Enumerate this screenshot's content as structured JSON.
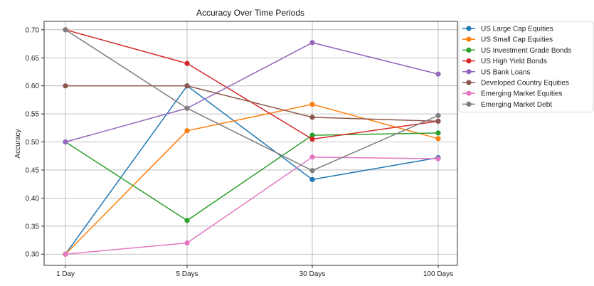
{
  "chart_data": {
    "type": "line",
    "title": "Accuracy Over Time Periods",
    "xlabel": "",
    "ylabel": "Accuracy",
    "categories": [
      "1 Day",
      "5 Days",
      "30 Days",
      "100 Days"
    ],
    "ylim": [
      0.28,
      0.715
    ],
    "yticks": [
      "0.30",
      "0.35",
      "0.40",
      "0.45",
      "0.50",
      "0.55",
      "0.60",
      "0.65",
      "0.70"
    ],
    "grid": true,
    "legend_position": "right-top",
    "series": [
      {
        "name": "US Large Cap Equities",
        "color": "#1f77b4",
        "values": [
          0.3,
          0.6,
          0.433,
          0.472
        ]
      },
      {
        "name": "US Small Cap Equities",
        "color": "#ff7f0e",
        "values": [
          0.3,
          0.52,
          0.567,
          0.506
        ]
      },
      {
        "name": "US Investment Grade Bonds",
        "color": "#2ca02c",
        "values": [
          0.5,
          0.36,
          0.512,
          0.516
        ]
      },
      {
        "name": "US High Yield Bonds",
        "color": "#d62728",
        "values": [
          0.7,
          0.64,
          0.505,
          0.537
        ]
      },
      {
        "name": "US Bank Loans",
        "color": "#9467bd",
        "values": [
          0.5,
          0.56,
          0.677,
          0.621
        ]
      },
      {
        "name": "Developed Country Equities",
        "color": "#8c564b",
        "values": [
          0.6,
          0.6,
          0.544,
          0.537
        ]
      },
      {
        "name": "Emerging Market Equities",
        "color": "#e377c2",
        "values": [
          0.3,
          0.32,
          0.473,
          0.47
        ]
      },
      {
        "name": "Emerging Market Debt",
        "color": "#7f7f7f",
        "values": [
          0.7,
          0.56,
          0.449,
          0.547
        ]
      }
    ]
  }
}
